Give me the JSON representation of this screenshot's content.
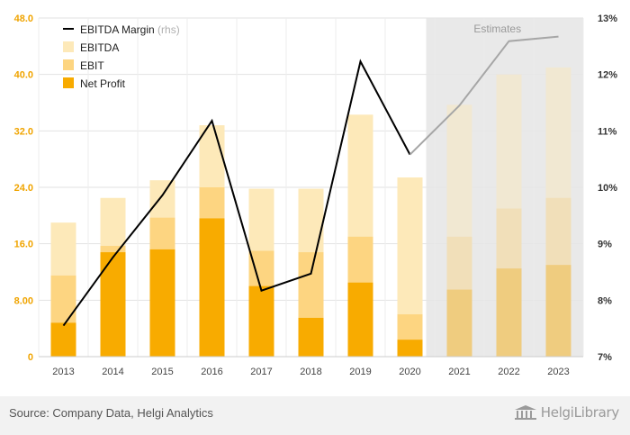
{
  "chart_data": {
    "type": "bar",
    "stacked_overlay": true,
    "categories": [
      "2013",
      "2014",
      "2015",
      "2016",
      "2017",
      "2018",
      "2019",
      "2020",
      "2021",
      "2022",
      "2023"
    ],
    "estimates_from": "2021",
    "estimates_label": "Estimates",
    "series": [
      {
        "name": "EBITDA",
        "type": "bar",
        "color": "#fde9b9",
        "values": [
          19.0,
          22.5,
          25.0,
          32.8,
          23.8,
          23.8,
          34.3,
          25.4,
          35.7,
          40.0,
          41.0
        ]
      },
      {
        "name": "EBIT",
        "type": "bar",
        "color": "#fdd581",
        "values": [
          11.5,
          15.7,
          19.7,
          24.0,
          15.0,
          14.8,
          17.0,
          6.0,
          17.0,
          21.0,
          22.5
        ]
      },
      {
        "name": "Net Profit",
        "type": "bar",
        "color": "#f8ab00",
        "values": [
          4.8,
          14.8,
          15.2,
          19.6,
          10.0,
          5.5,
          10.5,
          2.4,
          9.5,
          12.5,
          13.0
        ]
      },
      {
        "name": "EBITDA Margin",
        "axis_note": "(rhs)",
        "type": "line",
        "axis": "right",
        "color": "#000000",
        "estimate_color": "#a6a6a6",
        "values": [
          7.55,
          8.76,
          9.86,
          11.18,
          8.17,
          8.47,
          12.23,
          10.58,
          11.45,
          12.59,
          12.67
        ]
      }
    ],
    "y_left": {
      "min": 0,
      "max": 48,
      "ticks": [
        "0",
        "8.00",
        "16.0",
        "24.0",
        "32.0",
        "40.0",
        "48.0"
      ],
      "tick_values": [
        0,
        8,
        16,
        24,
        32,
        40,
        48
      ],
      "tick_color": "#f0a400"
    },
    "y_right": {
      "min": 7,
      "max": 13,
      "ticks": [
        "7%",
        "8%",
        "9%",
        "10%",
        "11%",
        "12%",
        "13%"
      ],
      "tick_values": [
        7,
        8,
        9,
        10,
        11,
        12,
        13
      ]
    },
    "grid": true,
    "legend_position": "top-left"
  },
  "footer": {
    "source": "Source: Company Data, Helgi Analytics",
    "logo_text": "HelgiLibrary"
  }
}
